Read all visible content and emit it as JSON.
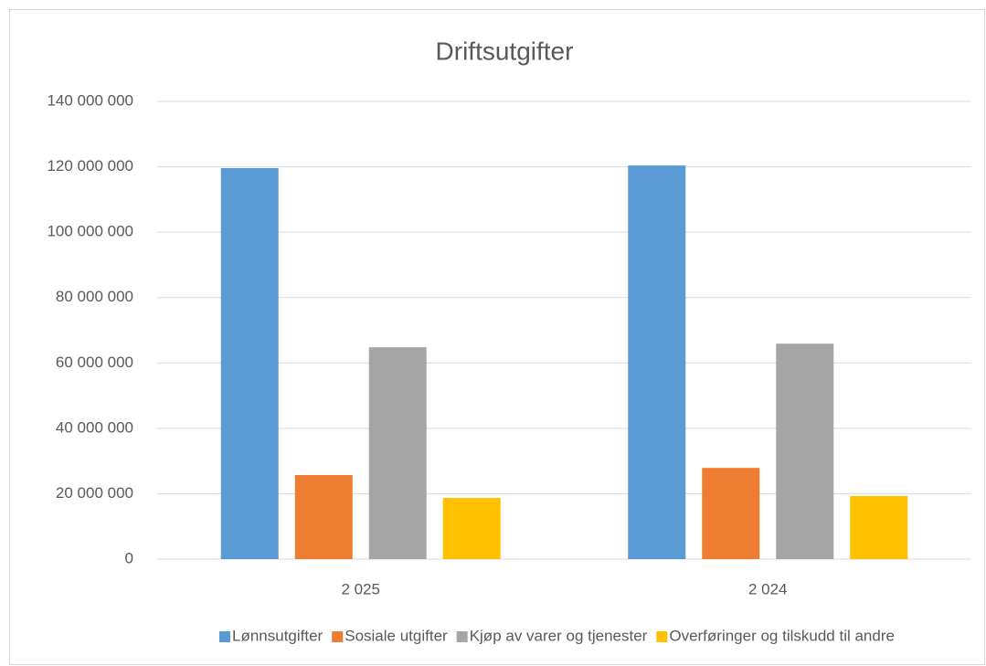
{
  "chart_data": {
    "type": "bar",
    "title": "Driftsutgifter",
    "categories": [
      "2 025",
      "2 024"
    ],
    "series": [
      {
        "name": "Lønnsutgifter",
        "color": "#5b9bd5",
        "values": [
          119600000,
          120400000
        ]
      },
      {
        "name": "Sosiale utgifter",
        "color": "#ed7d31",
        "values": [
          25700000,
          27900000
        ]
      },
      {
        "name": "Kjøp av varer og tjenester",
        "color": "#a5a5a5",
        "values": [
          64800000,
          65900000
        ]
      },
      {
        "name": "Overføringer og tilskudd til andre",
        "color": "#ffc000",
        "values": [
          18700000,
          19300000
        ]
      }
    ],
    "ylim": [
      0,
      140000000
    ],
    "yticks": [
      0,
      {
        "value": 20000000,
        "label": "20 000 000"
      },
      {
        "value": 40000000,
        "label": "40 000 000"
      },
      {
        "value": 60000000,
        "label": "60 000 000"
      },
      {
        "value": 80000000,
        "label": "80 000 000"
      },
      {
        "value": 100000000,
        "label": "100 000 000"
      },
      {
        "value": 120000000,
        "label": "120 000 000"
      },
      {
        "value": 140000000,
        "label": "140 000 000"
      }
    ],
    "grid": true,
    "legend": "bottom"
  }
}
